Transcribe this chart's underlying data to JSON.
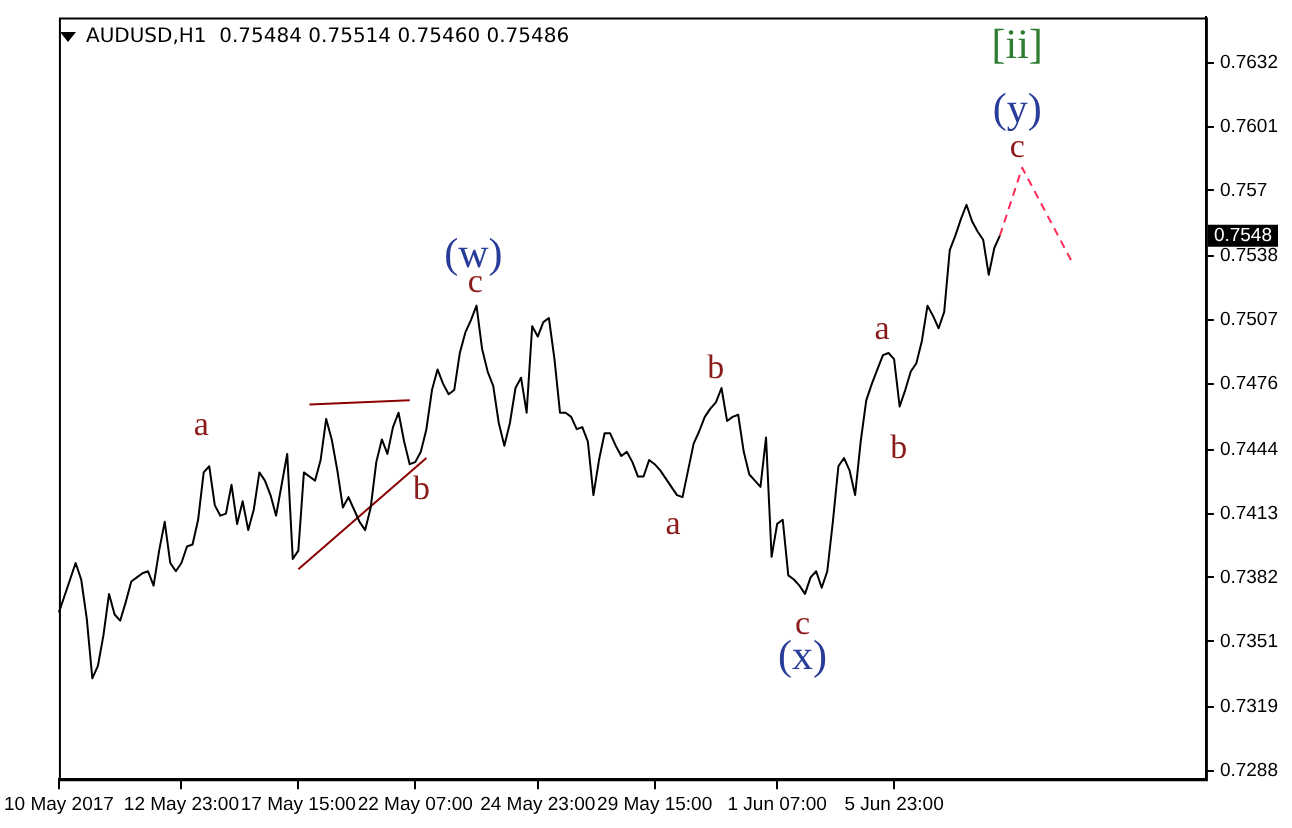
{
  "chart_data": {
    "type": "line",
    "title": "AUDUSD,H1  0.75484 0.75514 0.75460 0.75486",
    "marker": "none",
    "categories": [
      "10 May 2017",
      null,
      null,
      null,
      null,
      null,
      null,
      null,
      null,
      null,
      null,
      null,
      null,
      null,
      null,
      null,
      null,
      null,
      null,
      null,
      null,
      null,
      "12 May 23:00",
      null,
      null,
      null,
      null,
      null,
      null,
      null,
      null,
      null,
      null,
      null,
      null,
      null,
      null,
      null,
      null,
      null,
      null,
      null,
      null,
      "17 May 15:00",
      null,
      null,
      null,
      null,
      null,
      null,
      null,
      null,
      null,
      null,
      null,
      null,
      null,
      null,
      null,
      null,
      null,
      null,
      null,
      null,
      "22 May 07:00",
      null,
      null,
      null,
      null,
      null,
      null,
      null,
      null,
      null,
      null,
      null,
      null,
      null,
      null,
      null,
      null,
      null,
      null,
      null,
      null,
      null,
      "24 May 23:00",
      null,
      null,
      null,
      null,
      null,
      null,
      null,
      null,
      null,
      null,
      null,
      null,
      null,
      null,
      null,
      null,
      null,
      null,
      null,
      null,
      "29 May 15:00",
      null,
      null,
      null,
      null,
      null,
      null,
      null,
      null,
      null,
      null,
      null,
      null,
      null,
      null,
      null,
      null,
      null,
      null,
      null,
      null,
      null,
      "1 Jun 07:00",
      null,
      null,
      null,
      null,
      null,
      null,
      null,
      null,
      null,
      null,
      null,
      null,
      null,
      null,
      null,
      null,
      null,
      null,
      null,
      null,
      "5 Jun 23:00",
      null,
      null,
      null,
      null,
      null,
      null,
      null,
      null,
      null,
      null,
      null,
      null,
      null,
      null,
      null,
      null,
      null,
      null,
      null,
      null,
      null,
      null,
      null,
      null,
      null,
      null,
      null,
      null,
      null,
      null,
      null,
      null,
      null,
      null,
      null,
      null,
      null,
      null,
      null,
      null,
      null,
      null,
      null,
      null,
      null,
      null,
      null,
      null,
      null,
      null,
      null,
      null,
      null,
      null,
      null,
      null
    ],
    "ylim": [
      0.7284,
      0.7654
    ],
    "yticks": [
      0.7288,
      0.7319,
      0.7351,
      0.7382,
      0.7413,
      0.7444,
      0.7476,
      0.7507,
      0.7538,
      0.757,
      0.7601,
      0.7632
    ],
    "series": [
      {
        "type": "line",
        "color": "#000000",
        "values": [
          0.7365,
          0.7373,
          0.7381,
          0.7389,
          0.7381,
          0.7362,
          0.7333,
          0.7339,
          0.7354,
          0.7374,
          0.7364,
          0.7361,
          0.737,
          0.738,
          0.7382,
          0.7384,
          0.7385,
          0.7378,
          0.7395,
          0.7409,
          0.7389,
          0.7385,
          0.7389,
          0.7397,
          0.7398,
          0.741,
          0.7433,
          0.7436,
          0.7417,
          0.7412,
          0.7413,
          0.7427,
          0.7408,
          0.7419,
          0.7405,
          0.7415,
          0.7433,
          0.7429,
          0.7422,
          0.7412,
          0.7427,
          0.7442,
          0.7391,
          0.7395,
          0.7433,
          0.7431,
          0.7429,
          0.7439,
          0.7459,
          0.7449,
          0.7434,
          0.7416,
          0.7421,
          0.7415,
          0.7409,
          0.7405,
          0.7416,
          0.7438,
          0.7449,
          0.7442,
          0.7455,
          0.7462,
          0.7448,
          0.7437,
          0.7438,
          0.7443,
          0.7454,
          0.7473,
          0.7483,
          0.7476,
          0.7471,
          0.7473,
          0.7491,
          0.7501,
          0.7507,
          0.7514,
          0.7493,
          0.7482,
          0.7475,
          0.7457,
          0.7446,
          0.7457,
          0.7474,
          0.7479,
          0.7462,
          0.7504,
          0.7499,
          0.7506,
          0.7508,
          0.7488,
          0.7462,
          0.7462,
          0.746,
          0.7454,
          0.7455,
          0.7448,
          0.7422,
          0.7439,
          0.7452,
          0.7452,
          0.7446,
          0.7441,
          0.7443,
          0.7438,
          0.7431,
          0.7431,
          0.7439,
          0.7437,
          0.7434,
          0.743,
          0.7426,
          0.7422,
          0.7421,
          0.7434,
          0.7447,
          0.7453,
          0.746,
          0.7464,
          0.7467,
          0.7474,
          0.7458,
          0.746,
          0.7461,
          0.7443,
          0.7432,
          0.7429,
          0.7426,
          0.745,
          0.7392,
          0.7408,
          0.741,
          0.7383,
          0.7381,
          0.7378,
          0.7374,
          0.7382,
          0.7385,
          0.7377,
          0.7385,
          0.7409,
          0.7436,
          0.744,
          0.7434,
          0.7422,
          0.7448,
          0.7468,
          0.7476,
          0.7483,
          0.749,
          0.7491,
          0.7488,
          0.7465,
          0.7473,
          0.7482,
          0.7486,
          0.7497,
          0.7514,
          0.7509,
          0.7503,
          0.7511,
          0.7541,
          0.7548,
          0.7556,
          0.7563,
          0.7555,
          0.755,
          0.7546,
          0.7529,
          0.7542,
          0.7548,
          null,
          null,
          null,
          null,
          null,
          null,
          null,
          null,
          null,
          null,
          null,
          null,
          null,
          null,
          null,
          null,
          null,
          null,
          null,
          null,
          null,
          null,
          null,
          null,
          null,
          null,
          null,
          null,
          null,
          null,
          null,
          null,
          null,
          null,
          null,
          null,
          null
        ]
      },
      {
        "type": "line",
        "color": "#ff2a55",
        "line_style": "dashed",
        "values": [
          null,
          null,
          null,
          null,
          null,
          null,
          null,
          null,
          null,
          null,
          null,
          null,
          null,
          null,
          null,
          null,
          null,
          null,
          null,
          null,
          null,
          null,
          null,
          null,
          null,
          null,
          null,
          null,
          null,
          null,
          null,
          null,
          null,
          null,
          null,
          null,
          null,
          null,
          null,
          null,
          null,
          null,
          null,
          null,
          null,
          null,
          null,
          null,
          null,
          null,
          null,
          null,
          null,
          null,
          null,
          null,
          null,
          null,
          null,
          null,
          null,
          null,
          null,
          null,
          null,
          null,
          null,
          null,
          null,
          null,
          null,
          null,
          null,
          null,
          null,
          null,
          null,
          null,
          null,
          null,
          null,
          null,
          null,
          null,
          null,
          null,
          null,
          null,
          null,
          null,
          null,
          null,
          null,
          null,
          null,
          null,
          null,
          null,
          null,
          null,
          null,
          null,
          null,
          null,
          null,
          null,
          null,
          null,
          null,
          null,
          null,
          null,
          null,
          null,
          null,
          null,
          null,
          null,
          null,
          null,
          null,
          null,
          null,
          null,
          null,
          null,
          null,
          null,
          null,
          null,
          null,
          null,
          null,
          null,
          null,
          null,
          null,
          null,
          null,
          null,
          null,
          null,
          null,
          null,
          null,
          null,
          null,
          null,
          null,
          null,
          null,
          null,
          null,
          null,
          null,
          null,
          null,
          null,
          null,
          null,
          null,
          null,
          null,
          null,
          null,
          null,
          null,
          null,
          null,
          0.7548,
          null,
          null,
          null,
          0.7581,
          null,
          null,
          null,
          null,
          null,
          null,
          null,
          null,
          0.7535,
          null,
          null,
          null,
          null,
          null,
          null,
          null,
          null,
          null,
          null,
          null,
          null,
          null,
          null,
          null,
          null,
          null,
          null,
          null,
          null,
          null,
          null,
          null,
          null
        ]
      },
      {
        "type": "line",
        "color": "#8b0000",
        "values": [
          null,
          null,
          null,
          null,
          null,
          null,
          null,
          null,
          null,
          null,
          null,
          null,
          null,
          null,
          null,
          null,
          null,
          null,
          null,
          null,
          null,
          null,
          null,
          null,
          null,
          null,
          null,
          null,
          null,
          null,
          null,
          null,
          null,
          null,
          null,
          null,
          null,
          null,
          null,
          null,
          null,
          null,
          null,
          null,
          null,
          0.7466,
          null,
          null,
          null,
          null,
          null,
          null,
          null,
          null,
          null,
          null,
          null,
          null,
          null,
          null,
          null,
          null,
          null,
          0.7468,
          null,
          null,
          null,
          null,
          null,
          null,
          null,
          null,
          null,
          null,
          null,
          null,
          null,
          null,
          null,
          null,
          null,
          null,
          null,
          null,
          null,
          null,
          null,
          null,
          null,
          null,
          null,
          null,
          null,
          null,
          null,
          null,
          null,
          null,
          null,
          null,
          null,
          null,
          null,
          null,
          null,
          null,
          null,
          null,
          null,
          null,
          null,
          null,
          null,
          null,
          null,
          null,
          null,
          null,
          null,
          null,
          null,
          null,
          null,
          null,
          null,
          null,
          null,
          null,
          null,
          null,
          null,
          null,
          null,
          null,
          null,
          null,
          null,
          null,
          null,
          null,
          null,
          null,
          null,
          null,
          null,
          null,
          null,
          null,
          null,
          null,
          null,
          null,
          null,
          null,
          null,
          null,
          null,
          null,
          null,
          null,
          null,
          null,
          null,
          null,
          null,
          null,
          null,
          null,
          null,
          null,
          null,
          null,
          null,
          null,
          null,
          null,
          null,
          null,
          null,
          null,
          null,
          null,
          null,
          null,
          null,
          null,
          null,
          null,
          null,
          null,
          null,
          null,
          null,
          null,
          null,
          null,
          null,
          null,
          null,
          null,
          null,
          null,
          null,
          null,
          null,
          null,
          null
        ]
      },
      {
        "type": "line",
        "color": "#8b0000",
        "values": [
          null,
          null,
          null,
          null,
          null,
          null,
          null,
          null,
          null,
          null,
          null,
          null,
          null,
          null,
          null,
          null,
          null,
          null,
          null,
          null,
          null,
          null,
          null,
          null,
          null,
          null,
          null,
          null,
          null,
          null,
          null,
          null,
          null,
          null,
          null,
          null,
          null,
          null,
          null,
          null,
          null,
          null,
          null,
          0.7386,
          null,
          null,
          null,
          null,
          null,
          null,
          null,
          null,
          null,
          null,
          null,
          null,
          null,
          null,
          null,
          null,
          null,
          null,
          null,
          null,
          null,
          null,
          0.744,
          null,
          null,
          null,
          null,
          null,
          null,
          null,
          null,
          null,
          null,
          null,
          null,
          null,
          null,
          null,
          null,
          null,
          null,
          null,
          null,
          null,
          null,
          null,
          null,
          null,
          null,
          null,
          null,
          null,
          null,
          null,
          null,
          null,
          null,
          null,
          null,
          null,
          null,
          null,
          null,
          null,
          null,
          null,
          null,
          null,
          null,
          null,
          null,
          null,
          null,
          null,
          null,
          null,
          null,
          null,
          null,
          null,
          null,
          null,
          null,
          null,
          null,
          null,
          null,
          null,
          null,
          null,
          null,
          null,
          null,
          null,
          null,
          null,
          null,
          null,
          null,
          null,
          null,
          null,
          null,
          null,
          null,
          null,
          null,
          null,
          null,
          null,
          null,
          null,
          null,
          null,
          null,
          null,
          null,
          null,
          null,
          null,
          null,
          null,
          null,
          null,
          null,
          null,
          null,
          null,
          null,
          null,
          null,
          null,
          null,
          null,
          null,
          null,
          null,
          null,
          null,
          null,
          null,
          null,
          null,
          null,
          null,
          null,
          null,
          null,
          null,
          null,
          null,
          null,
          null,
          null,
          null,
          null,
          null,
          null,
          null,
          null,
          null,
          null,
          null
        ]
      }
    ],
    "annotations": [
      "a",
      "b",
      "c",
      "(w)",
      "a",
      "b",
      "c",
      "(x)",
      "a",
      "b",
      "[ii]",
      "(y)",
      "c",
      {
        "text": "0.7548",
        "y": 0.7548
      }
    ]
  }
}
